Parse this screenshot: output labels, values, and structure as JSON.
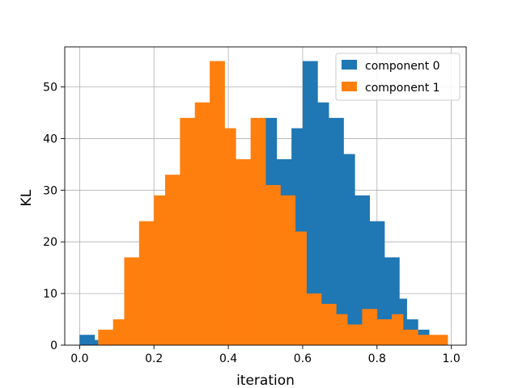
{
  "chart_data": {
    "type": "histogram",
    "xlabel": "iteration",
    "ylabel": "KL",
    "xlim": [
      -0.04,
      1.04
    ],
    "ylim": [
      0,
      57.75
    ],
    "xticks": [
      0.0,
      0.2,
      0.4,
      0.6,
      0.8,
      1.0
    ],
    "xtick_labels": [
      "0.0",
      "0.2",
      "0.4",
      "0.6",
      "0.8",
      "1.0"
    ],
    "yticks": [
      0,
      10,
      20,
      30,
      40,
      50
    ],
    "ytick_labels": [
      "0",
      "10",
      "20",
      "30",
      "40",
      "50"
    ],
    "grid": true,
    "legend_position": "top-right",
    "series": [
      {
        "name": "component 0",
        "color": "#1f77b4",
        "bins": [
          [
            0.0,
            0.04,
            2
          ],
          [
            0.04,
            0.05,
            1
          ],
          [
            0.12,
            0.13,
            6
          ],
          [
            0.5,
            0.53,
            44
          ],
          [
            0.53,
            0.57,
            36
          ],
          [
            0.57,
            0.6,
            42
          ],
          [
            0.6,
            0.64,
            55
          ],
          [
            0.64,
            0.67,
            47
          ],
          [
            0.67,
            0.71,
            44
          ],
          [
            0.71,
            0.74,
            37
          ],
          [
            0.74,
            0.78,
            29
          ],
          [
            0.78,
            0.82,
            24
          ],
          [
            0.82,
            0.86,
            17
          ],
          [
            0.86,
            0.88,
            9
          ],
          [
            0.88,
            0.91,
            5
          ],
          [
            0.91,
            0.94,
            3
          ],
          [
            0.94,
            0.96,
            1
          ]
        ]
      },
      {
        "name": "component 1",
        "color": "#ff7f0e",
        "bins": [
          [
            0.05,
            0.09,
            3
          ],
          [
            0.09,
            0.12,
            5
          ],
          [
            0.12,
            0.16,
            17
          ],
          [
            0.16,
            0.2,
            24
          ],
          [
            0.2,
            0.23,
            29
          ],
          [
            0.23,
            0.27,
            33
          ],
          [
            0.27,
            0.31,
            44
          ],
          [
            0.31,
            0.35,
            47
          ],
          [
            0.35,
            0.39,
            55
          ],
          [
            0.39,
            0.42,
            42
          ],
          [
            0.42,
            0.46,
            36
          ],
          [
            0.46,
            0.5,
            44
          ],
          [
            0.5,
            0.54,
            31
          ],
          [
            0.54,
            0.58,
            29
          ],
          [
            0.58,
            0.61,
            22
          ],
          [
            0.61,
            0.65,
            10
          ],
          [
            0.65,
            0.69,
            8
          ],
          [
            0.69,
            0.72,
            6
          ],
          [
            0.72,
            0.76,
            4
          ],
          [
            0.76,
            0.8,
            7
          ],
          [
            0.8,
            0.84,
            5
          ],
          [
            0.84,
            0.87,
            6
          ],
          [
            0.87,
            0.91,
            3
          ],
          [
            0.91,
            0.95,
            2
          ],
          [
            0.95,
            0.99,
            2
          ]
        ]
      }
    ]
  }
}
